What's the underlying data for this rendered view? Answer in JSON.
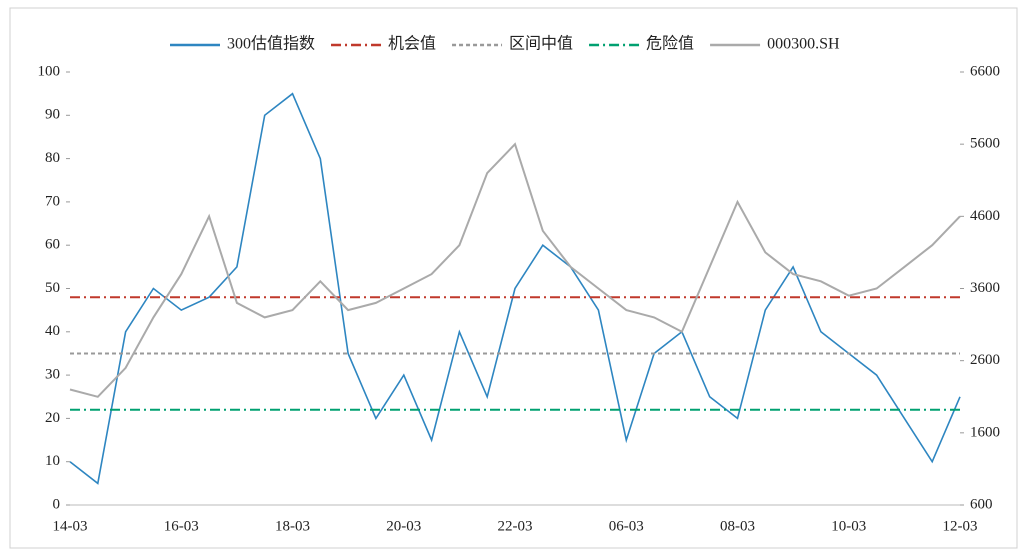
{
  "chart_data": {
    "type": "line",
    "categories": [
      "14-03",
      null,
      null,
      null,
      "16-03",
      null,
      null,
      null,
      "18-03",
      null,
      null,
      null,
      "20-03",
      null,
      null,
      null,
      "22-03",
      null,
      null,
      null,
      "06-03",
      null,
      null,
      null,
      "08-03",
      null,
      null,
      null,
      "10-03",
      null,
      null,
      null,
      "12-03"
    ],
    "series": [
      {
        "name": "300估值指数",
        "color": "#2e86c1",
        "dash": "solid",
        "axis": "y",
        "values": [
          10,
          5,
          40,
          50,
          45,
          48,
          55,
          90,
          95,
          80,
          35,
          20,
          30,
          15,
          40,
          25,
          50,
          60,
          55,
          45,
          15,
          35,
          40,
          25,
          20,
          45,
          55,
          40,
          35,
          30,
          20,
          10,
          25
        ]
      },
      {
        "name": "机会值",
        "color": "#c0392b",
        "dash": "dash-dot",
        "axis": "y",
        "values": [
          48,
          48,
          48,
          48,
          48,
          48,
          48,
          48,
          48,
          48,
          48,
          48,
          48,
          48,
          48,
          48,
          48,
          48,
          48,
          48,
          48,
          48,
          48,
          48,
          48,
          48,
          48,
          48,
          48,
          48,
          48,
          48,
          48
        ]
      },
      {
        "name": "区间中值",
        "color": "#999999",
        "dash": "dashed",
        "axis": "y",
        "values": [
          35,
          35,
          35,
          35,
          35,
          35,
          35,
          35,
          35,
          35,
          35,
          35,
          35,
          35,
          35,
          35,
          35,
          35,
          35,
          35,
          35,
          35,
          35,
          35,
          35,
          35,
          35,
          35,
          35,
          35,
          35,
          35,
          35
        ]
      },
      {
        "name": "危险值",
        "color": "#00a070",
        "dash": "dash-dot",
        "axis": "y",
        "values": [
          22,
          22,
          22,
          22,
          22,
          22,
          22,
          22,
          22,
          22,
          22,
          22,
          22,
          22,
          22,
          22,
          22,
          22,
          22,
          22,
          22,
          22,
          22,
          22,
          22,
          22,
          22,
          22,
          22,
          22,
          22,
          22,
          22
        ]
      },
      {
        "name": "000300.SH",
        "color": "#aaaaaa",
        "dash": "solid",
        "axis": "y2",
        "values": [
          2200,
          2100,
          2500,
          3200,
          3800,
          4600,
          3400,
          3200,
          3300,
          3700,
          3300,
          3400,
          3600,
          3800,
          4200,
          5200,
          5600,
          4400,
          3900,
          3600,
          3300,
          3200,
          3000,
          3900,
          4800,
          4100,
          3800,
          3700,
          3500,
          3600,
          3900,
          4200,
          4600
        ]
      }
    ],
    "ylim": [
      0,
      100
    ],
    "yticks": [
      0,
      10,
      20,
      30,
      40,
      50,
      60,
      70,
      80,
      90,
      100
    ],
    "y2lim": [
      600,
      6600
    ],
    "y2ticks": [
      600,
      1600,
      2600,
      3600,
      4600,
      5600,
      6600
    ],
    "legend": "top"
  }
}
